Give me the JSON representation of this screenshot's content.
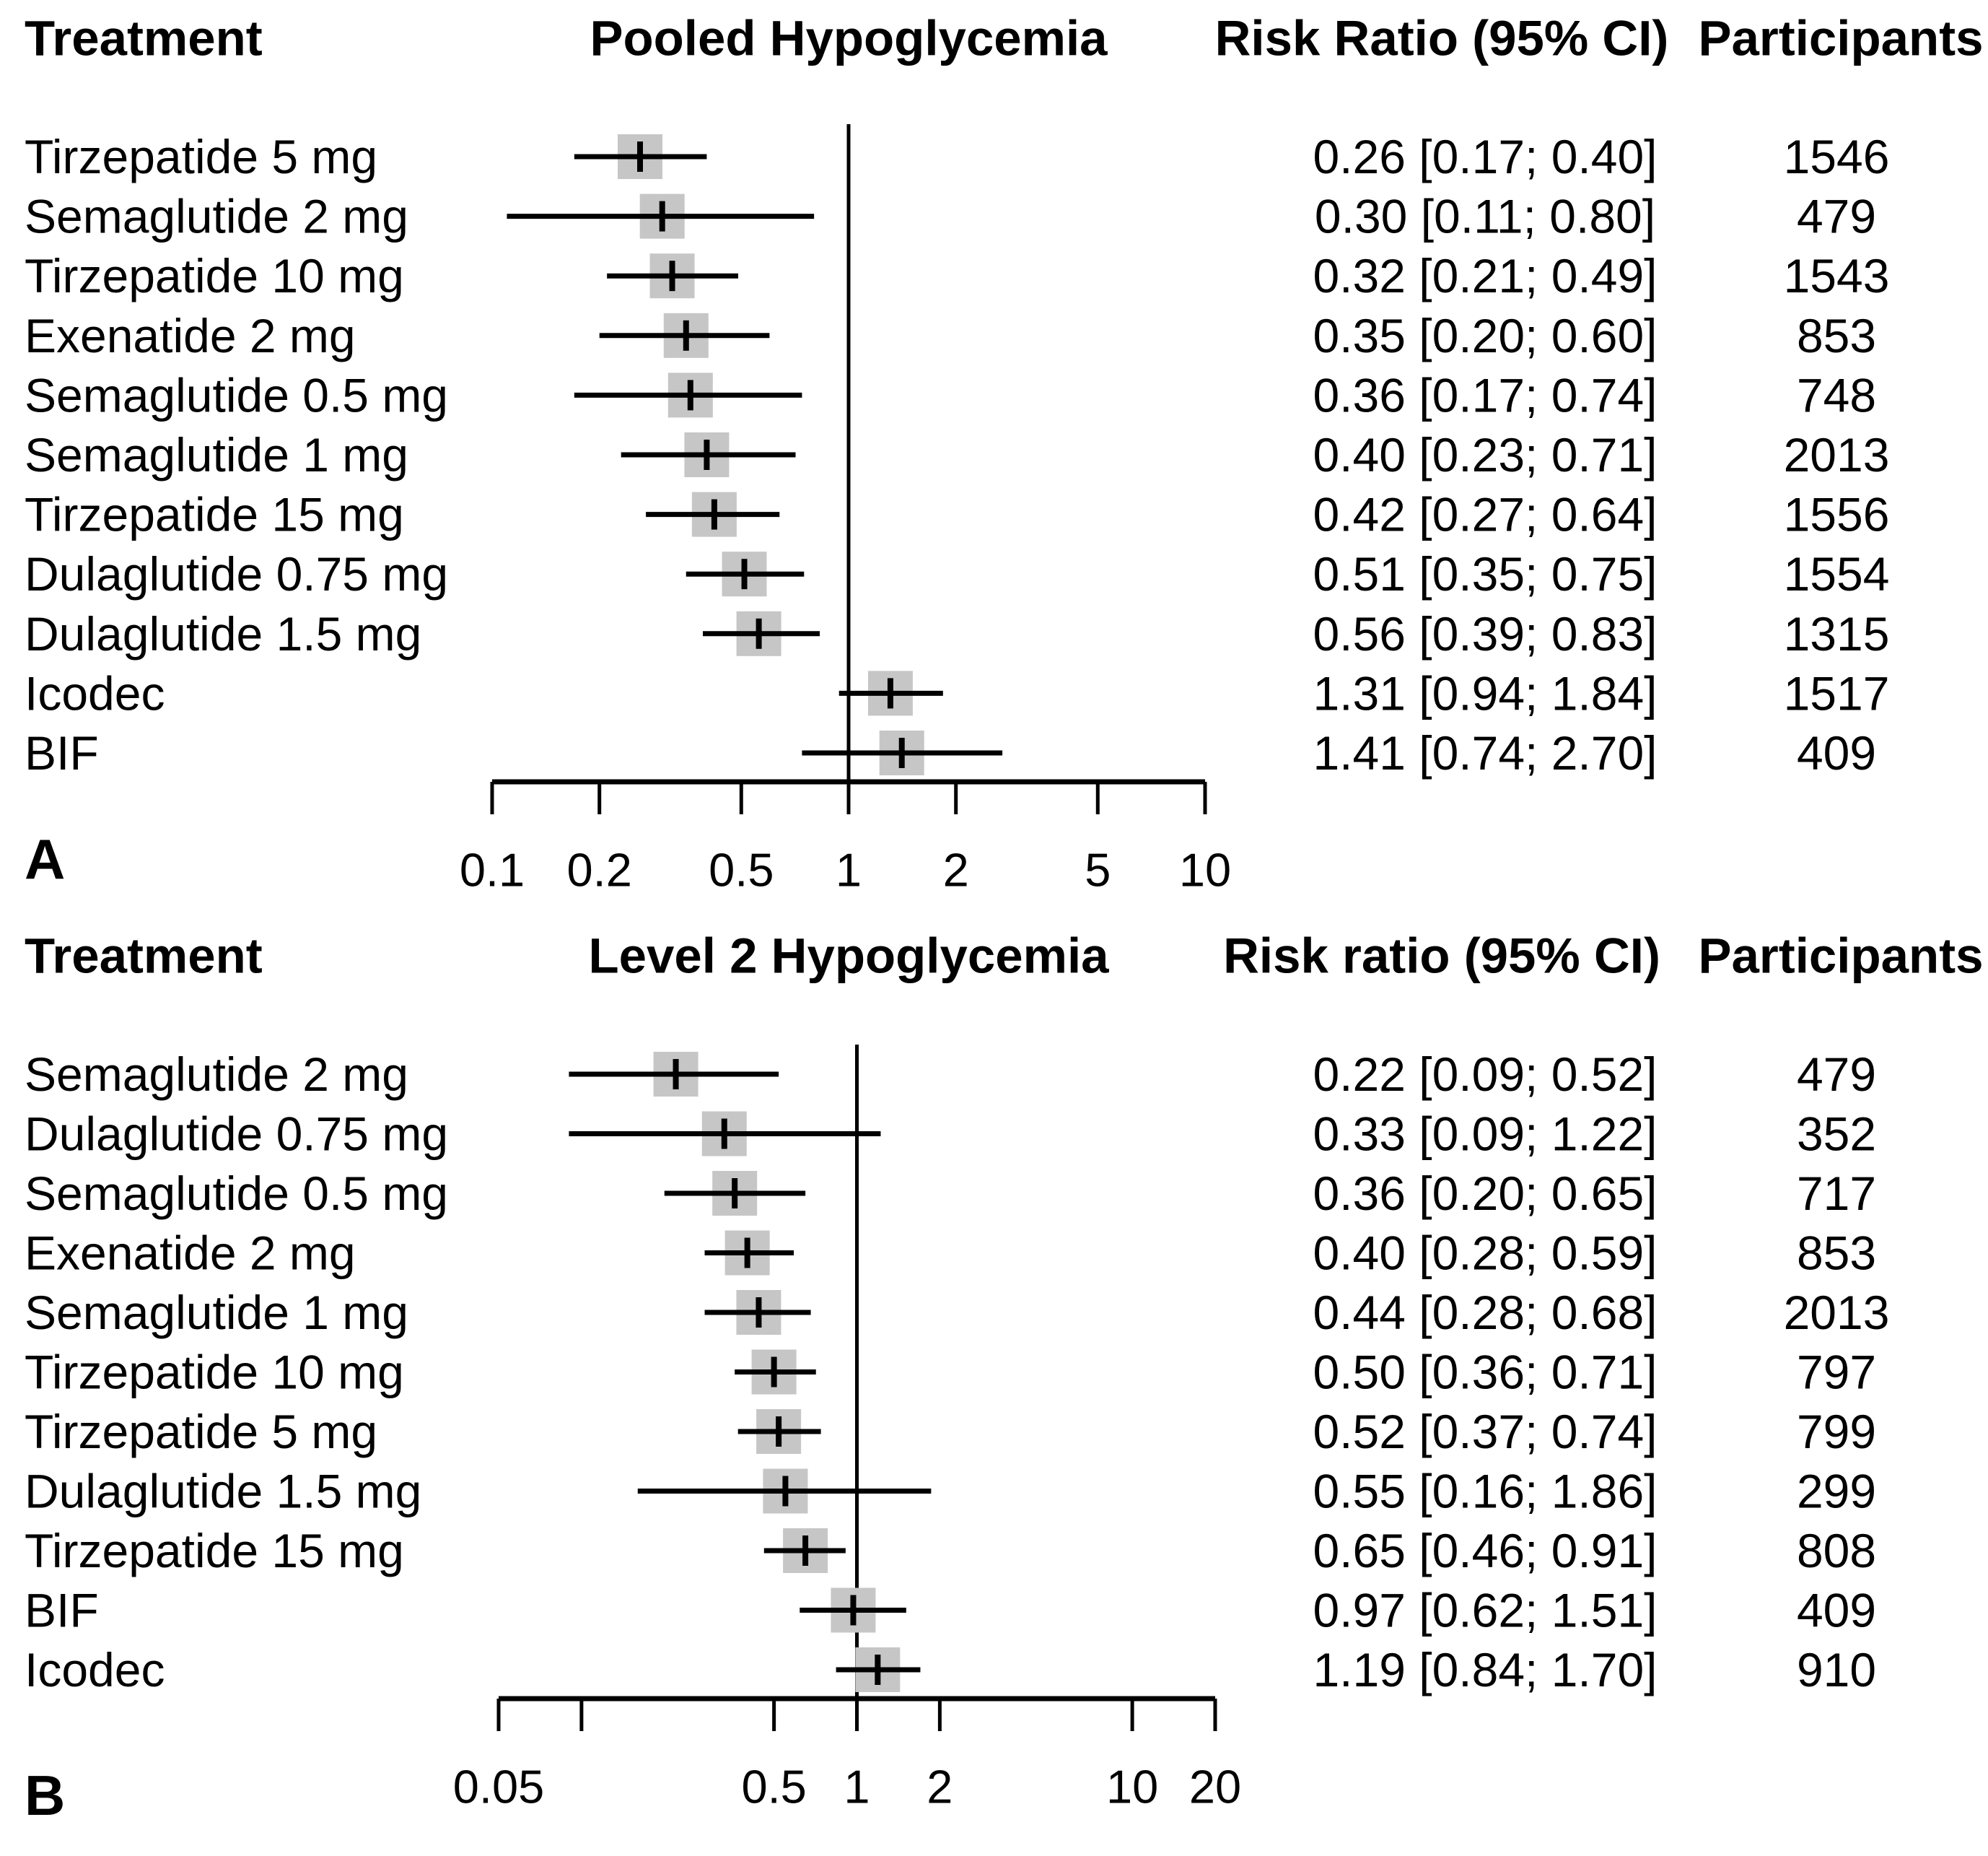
{
  "styles": {
    "square_color": "#c6c6c6",
    "line_color": "#000000",
    "text_color": "#000000",
    "background": "#ffffff"
  },
  "chart_data": [
    {
      "type": "forest",
      "panel_label": "A",
      "title": "Pooled Hypoglycemia",
      "columns": {
        "treatment": "Treatment",
        "risk_ratio": "Risk Ratio (95% CI)",
        "participants": "Participants"
      },
      "axis": {
        "scale": "log",
        "min": 0.1,
        "max": 10,
        "ticks": [
          0.1,
          0.2,
          0.5,
          1,
          2,
          5,
          10
        ],
        "tick_labels": [
          "0.1",
          "0.2",
          "0.5",
          "1",
          "2",
          "5",
          "10"
        ],
        "reference_line": 1
      },
      "rows": [
        {
          "treatment": "Tirzepatide 5 mg",
          "rr": 0.26,
          "ci_low": 0.17,
          "ci_high": 0.4,
          "rr_label": "0.26 [0.17; 0.40]",
          "participants": "1546"
        },
        {
          "treatment": "Semaglutide 2 mg",
          "rr": 0.3,
          "ci_low": 0.11,
          "ci_high": 0.8,
          "rr_label": "0.30 [0.11; 0.80]",
          "participants": "479"
        },
        {
          "treatment": "Tirzepatide 10 mg",
          "rr": 0.32,
          "ci_low": 0.21,
          "ci_high": 0.49,
          "rr_label": "0.32 [0.21; 0.49]",
          "participants": "1543"
        },
        {
          "treatment": "Exenatide 2 mg",
          "rr": 0.35,
          "ci_low": 0.2,
          "ci_high": 0.6,
          "rr_label": "0.35 [0.20; 0.60]",
          "participants": "853"
        },
        {
          "treatment": "Semaglutide 0.5 mg",
          "rr": 0.36,
          "ci_low": 0.17,
          "ci_high": 0.74,
          "rr_label": "0.36 [0.17; 0.74]",
          "participants": "748"
        },
        {
          "treatment": "Semaglutide 1 mg",
          "rr": 0.4,
          "ci_low": 0.23,
          "ci_high": 0.71,
          "rr_label": "0.40 [0.23; 0.71]",
          "participants": "2013"
        },
        {
          "treatment": "Tirzepatide 15 mg",
          "rr": 0.42,
          "ci_low": 0.27,
          "ci_high": 0.64,
          "rr_label": "0.42 [0.27; 0.64]",
          "participants": "1556"
        },
        {
          "treatment": "Dulaglutide 0.75 mg",
          "rr": 0.51,
          "ci_low": 0.35,
          "ci_high": 0.75,
          "rr_label": "0.51 [0.35; 0.75]",
          "participants": "1554"
        },
        {
          "treatment": "Dulaglutide 1.5 mg",
          "rr": 0.56,
          "ci_low": 0.39,
          "ci_high": 0.83,
          "rr_label": "0.56 [0.39; 0.83]",
          "participants": "1315"
        },
        {
          "treatment": "Icodec",
          "rr": 1.31,
          "ci_low": 0.94,
          "ci_high": 1.84,
          "rr_label": "1.31 [0.94; 1.84]",
          "participants": "1517"
        },
        {
          "treatment": "BIF",
          "rr": 1.41,
          "ci_low": 0.74,
          "ci_high": 2.7,
          "rr_label": "1.41 [0.74; 2.70]",
          "participants": "409"
        }
      ]
    },
    {
      "type": "forest",
      "panel_label": "B",
      "title": "Level 2 Hypoglycemia",
      "columns": {
        "treatment": "Treatment",
        "risk_ratio": "Risk ratio (95% CI)",
        "participants": "Participants"
      },
      "axis": {
        "scale": "log",
        "min": 0.05,
        "max": 20,
        "ticks": [
          0.05,
          0.1,
          0.5,
          1,
          2,
          10,
          20
        ],
        "tick_labels": [
          "0.05",
          "",
          "0.5",
          "1",
          "2",
          "10",
          "20"
        ],
        "reference_line": 1
      },
      "rows": [
        {
          "treatment": "Semaglutide 2 mg",
          "rr": 0.22,
          "ci_low": 0.09,
          "ci_high": 0.52,
          "rr_label": "0.22 [0.09; 0.52]",
          "participants": "479"
        },
        {
          "treatment": "Dulaglutide 0.75 mg",
          "rr": 0.33,
          "ci_low": 0.09,
          "ci_high": 1.22,
          "rr_label": "0.33 [0.09; 1.22]",
          "participants": "352"
        },
        {
          "treatment": "Semaglutide 0.5 mg",
          "rr": 0.36,
          "ci_low": 0.2,
          "ci_high": 0.65,
          "rr_label": "0.36 [0.20; 0.65]",
          "participants": "717"
        },
        {
          "treatment": "Exenatide 2 mg",
          "rr": 0.4,
          "ci_low": 0.28,
          "ci_high": 0.59,
          "rr_label": "0.40 [0.28; 0.59]",
          "participants": "853"
        },
        {
          "treatment": "Semaglutide 1 mg",
          "rr": 0.44,
          "ci_low": 0.28,
          "ci_high": 0.68,
          "rr_label": "0.44 [0.28; 0.68]",
          "participants": "2013"
        },
        {
          "treatment": "Tirzepatide 10 mg",
          "rr": 0.5,
          "ci_low": 0.36,
          "ci_high": 0.71,
          "rr_label": "0.50 [0.36; 0.71]",
          "participants": "797"
        },
        {
          "treatment": "Tirzepatide 5 mg",
          "rr": 0.52,
          "ci_low": 0.37,
          "ci_high": 0.74,
          "rr_label": "0.52 [0.37; 0.74]",
          "participants": "799"
        },
        {
          "treatment": "Dulaglutide 1.5 mg",
          "rr": 0.55,
          "ci_low": 0.16,
          "ci_high": 1.86,
          "rr_label": "0.55 [0.16; 1.86]",
          "participants": "299"
        },
        {
          "treatment": "Tirzepatide 15 mg",
          "rr": 0.65,
          "ci_low": 0.46,
          "ci_high": 0.91,
          "rr_label": "0.65 [0.46; 0.91]",
          "participants": "808"
        },
        {
          "treatment": "BIF",
          "rr": 0.97,
          "ci_low": 0.62,
          "ci_high": 1.51,
          "rr_label": "0.97 [0.62; 1.51]",
          "participants": "409"
        },
        {
          "treatment": "Icodec",
          "rr": 1.19,
          "ci_low": 0.84,
          "ci_high": 1.7,
          "rr_label": "1.19 [0.84; 1.70]",
          "participants": "910"
        }
      ]
    }
  ]
}
